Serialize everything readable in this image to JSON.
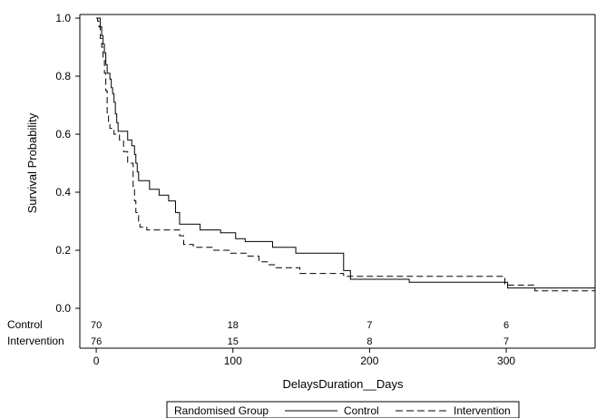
{
  "chart_data": {
    "type": "line",
    "subtype": "kaplan-meier-step",
    "title": "",
    "xlabel": "DelaysDuration__Days",
    "ylabel": "Survival Probability",
    "xlim": [
      -12,
      365
    ],
    "ylim": [
      0,
      1
    ],
    "x_ticks": [
      0,
      100,
      200,
      300
    ],
    "y_ticks": [
      0.0,
      0.2,
      0.4,
      0.6,
      0.8,
      1.0
    ],
    "x_tick_labels": [
      "0",
      "100",
      "200",
      "300"
    ],
    "y_tick_labels": [
      "0.0",
      "0.2",
      "0.4",
      "0.6",
      "0.8",
      "1.0"
    ],
    "grid": false,
    "legend": {
      "title": "Randomised Group",
      "placement": "bottom",
      "entries": [
        {
          "label": "Control",
          "style": "solid"
        },
        {
          "label": "Intervention",
          "style": "dashed"
        }
      ]
    },
    "series": [
      {
        "name": "Control",
        "style": "solid",
        "color": "#000000",
        "points": [
          [
            0,
            1.0
          ],
          [
            2,
            1.0
          ],
          [
            3,
            0.97
          ],
          [
            4,
            0.94
          ],
          [
            5,
            0.91
          ],
          [
            6,
            0.88
          ],
          [
            7,
            0.84
          ],
          [
            8,
            0.81
          ],
          [
            10,
            0.79
          ],
          [
            11,
            0.76
          ],
          [
            12,
            0.74
          ],
          [
            13,
            0.71
          ],
          [
            14,
            0.67
          ],
          [
            15,
            0.64
          ],
          [
            16,
            0.61
          ],
          [
            22,
            0.61
          ],
          [
            23,
            0.58
          ],
          [
            25,
            0.58
          ],
          [
            26,
            0.56
          ],
          [
            28,
            0.53
          ],
          [
            29,
            0.5
          ],
          [
            30,
            0.47
          ],
          [
            31,
            0.44
          ],
          [
            38,
            0.44
          ],
          [
            39,
            0.41
          ],
          [
            45,
            0.41
          ],
          [
            46,
            0.39
          ],
          [
            52,
            0.39
          ],
          [
            53,
            0.37
          ],
          [
            57,
            0.37
          ],
          [
            58,
            0.33
          ],
          [
            60,
            0.33
          ],
          [
            61,
            0.29
          ],
          [
            75,
            0.29
          ],
          [
            76,
            0.27
          ],
          [
            90,
            0.27
          ],
          [
            91,
            0.26
          ],
          [
            101,
            0.26
          ],
          [
            102,
            0.24
          ],
          [
            108,
            0.24
          ],
          [
            109,
            0.23
          ],
          [
            128,
            0.23
          ],
          [
            129,
            0.21
          ],
          [
            145,
            0.21
          ],
          [
            146,
            0.19
          ],
          [
            180,
            0.19
          ],
          [
            181,
            0.13
          ],
          [
            185,
            0.13
          ],
          [
            186,
            0.1
          ],
          [
            228,
            0.1
          ],
          [
            229,
            0.09
          ],
          [
            300,
            0.09
          ],
          [
            301,
            0.07
          ],
          [
            365,
            0.07
          ]
        ]
      },
      {
        "name": "Intervention",
        "style": "dashed",
        "color": "#000000",
        "points": [
          [
            0,
            1.0
          ],
          [
            1,
            0.99
          ],
          [
            2,
            0.97
          ],
          [
            3,
            0.93
          ],
          [
            4,
            0.9
          ],
          [
            5,
            0.86
          ],
          [
            6,
            0.81
          ],
          [
            7,
            0.75
          ],
          [
            8,
            0.67
          ],
          [
            9,
            0.64
          ],
          [
            10,
            0.62
          ],
          [
            12,
            0.62
          ],
          [
            13,
            0.6
          ],
          [
            16,
            0.6
          ],
          [
            17,
            0.58
          ],
          [
            19,
            0.58
          ],
          [
            20,
            0.54
          ],
          [
            22,
            0.54
          ],
          [
            23,
            0.5
          ],
          [
            26,
            0.5
          ],
          [
            27,
            0.42
          ],
          [
            28,
            0.37
          ],
          [
            29,
            0.33
          ],
          [
            31,
            0.3
          ],
          [
            32,
            0.28
          ],
          [
            36,
            0.28
          ],
          [
            37,
            0.27
          ],
          [
            60,
            0.27
          ],
          [
            61,
            0.25
          ],
          [
            63,
            0.25
          ],
          [
            64,
            0.22
          ],
          [
            70,
            0.22
          ],
          [
            71,
            0.21
          ],
          [
            85,
            0.21
          ],
          [
            86,
            0.2
          ],
          [
            96,
            0.2
          ],
          [
            97,
            0.19
          ],
          [
            110,
            0.19
          ],
          [
            111,
            0.18
          ],
          [
            118,
            0.18
          ],
          [
            119,
            0.16
          ],
          [
            125,
            0.16
          ],
          [
            126,
            0.15
          ],
          [
            130,
            0.15
          ],
          [
            131,
            0.14
          ],
          [
            148,
            0.14
          ],
          [
            149,
            0.12
          ],
          [
            180,
            0.12
          ],
          [
            181,
            0.11
          ],
          [
            298,
            0.11
          ],
          [
            299,
            0.08
          ],
          [
            320,
            0.08
          ],
          [
            321,
            0.06
          ],
          [
            365,
            0.06
          ]
        ]
      }
    ],
    "risk_table": {
      "times": [
        0,
        100,
        200,
        300
      ],
      "rows": [
        {
          "label": "Control",
          "values": [
            "70",
            "18",
            "7",
            "6"
          ]
        },
        {
          "label": "Intervention",
          "values": [
            "76",
            "15",
            "8",
            "7"
          ]
        }
      ]
    }
  }
}
